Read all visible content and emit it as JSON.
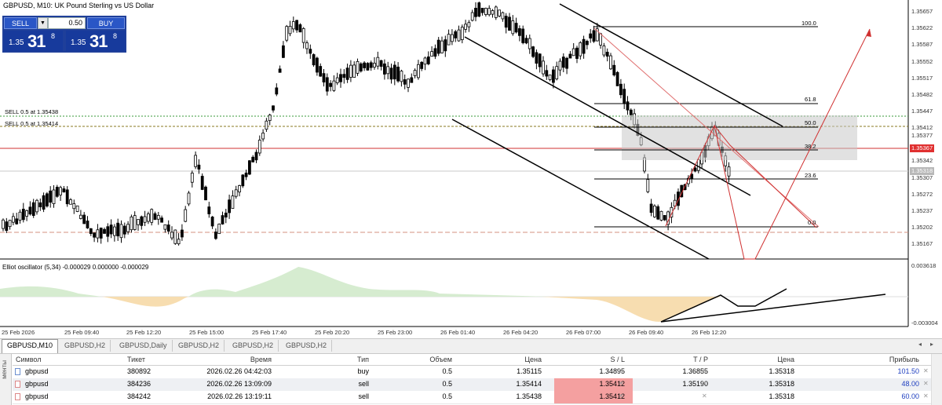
{
  "chart": {
    "title": "GBPUSD, M10:  UK Pound Sterling vs US Dollar",
    "oscillator_label": "Elliot oscillator (5,34) -0.000029 0.000000 -0.000029",
    "osc_axis_top": "0.003618",
    "osc_axis_bottom": "-0.003004"
  },
  "trade_panel": {
    "sell_label": "SELL",
    "buy_label": "BUY",
    "lot_value": "0.50",
    "arrow": "▼",
    "sell_price": {
      "prefix": "1.35",
      "big": "31",
      "sup": "8"
    },
    "buy_price": {
      "prefix": "1.35",
      "big": "31",
      "sup": "8"
    }
  },
  "price_axis": [
    "1.35657",
    "1.35622",
    "1.35587",
    "1.35552",
    "1.35517",
    "1.35482",
    "1.35447",
    "1.35412",
    "1.35377",
    "1.35342",
    "1.35307",
    "1.35272",
    "1.35237",
    "1.35202",
    "1.35167"
  ],
  "price_tags": {
    "current": "1.35367",
    "grey": "1.35318"
  },
  "time_axis": [
    "25 Feb 2026",
    "25 Feb 09:40",
    "25 Feb 12:20",
    "25 Feb 15:00",
    "25 Feb 17:40",
    "25 Feb 20:20",
    "25 Feb 23:00",
    "26 Feb 01:40",
    "26 Feb 04:20",
    "26 Feb 07:00",
    "26 Feb 09:40",
    "26 Feb 12:20"
  ],
  "order_lines": [
    {
      "label": "SELL 0.5 at 1.35438"
    },
    {
      "label": "SELL 0.5 at 1.35414"
    }
  ],
  "fib_levels": [
    "100.0",
    "61.8",
    "50.0",
    "38.2",
    "23.6",
    "0.0"
  ],
  "colors": {
    "panel_bg": "#1f3f9a",
    "bull_osc": "#d6ecd0",
    "bear_osc": "#f7ddb0",
    "red_line": "#d03030",
    "price_tag": "#e03030"
  },
  "tabs": [
    {
      "label": "GBPUSD,M10",
      "active": true
    },
    {
      "label": "GBPUSD,H2"
    },
    {
      "label": "GBPUSD,Daily"
    },
    {
      "label": "GBPUSD,H2"
    },
    {
      "label": "GBPUSD,H2"
    },
    {
      "label": "GBPUSD,H2"
    }
  ],
  "side_tab_label": "менты",
  "table": {
    "headers": [
      "Символ",
      "Тикет",
      "Время",
      "Тип",
      "Объем",
      "Цена",
      "S / L",
      "T / P",
      "Цена",
      "Прибыль"
    ],
    "rows": [
      {
        "symbol": "gbpusd",
        "ticket": "380892",
        "time": "2026.02.26 04:42:03",
        "type": "buy",
        "volume": "0.5",
        "price": "1.35115",
        "sl": "1.34895",
        "tp": "1.36855",
        "cur": "1.35318",
        "profit": "101.50"
      },
      {
        "symbol": "gbpusd",
        "ticket": "384236",
        "time": "2026.02.26 13:09:09",
        "type": "sell",
        "volume": "0.5",
        "price": "1.35414",
        "sl": "1.35412",
        "tp": "1.35190",
        "cur": "1.35318",
        "profit": "48.00"
      },
      {
        "symbol": "gbpusd",
        "ticket": "384242",
        "time": "2026.02.26 13:19:11",
        "type": "sell",
        "volume": "0.5",
        "price": "1.35438",
        "sl": "1.35412",
        "tp": "",
        "cur": "1.35318",
        "profit": "60.00"
      }
    ]
  }
}
